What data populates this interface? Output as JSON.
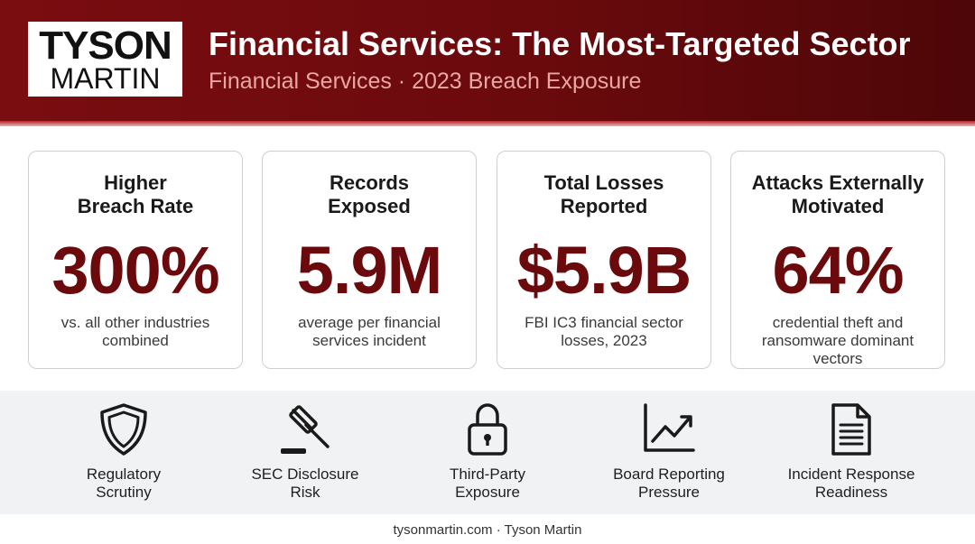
{
  "header": {
    "logo_line1": "TYSON",
    "logo_line2": "MARTIN",
    "title": "Financial Services: The Most-Targeted Sector",
    "subtitle": "Financial Services · 2023 Breach Exposure"
  },
  "stats": [
    {
      "title": "Higher\nBreach Rate",
      "value": "300%",
      "desc": "vs. all other industries combined"
    },
    {
      "title": "Records\nExposed",
      "value": "5.9M",
      "desc": "average per financial services incident"
    },
    {
      "title": "Total Losses\nReported",
      "value": "$5.9B",
      "desc": "FBI IC3 financial sector losses, 2023"
    },
    {
      "title": "Attacks Externally\nMotivated",
      "value": "64%",
      "desc": "credential theft and ransomware dominant vectors"
    }
  ],
  "risks": [
    {
      "icon": "shield-icon",
      "label": "Regulatory\nScrutiny"
    },
    {
      "icon": "gavel-icon",
      "label": "SEC Disclosure\nRisk"
    },
    {
      "icon": "lock-icon",
      "label": "Third-Party\nExposure"
    },
    {
      "icon": "chart-trend-icon",
      "label": "Board Reporting\nPressure"
    },
    {
      "icon": "document-icon",
      "label": "Incident Response\nReadiness"
    }
  ],
  "footer": {
    "text": "tysonmartin.com · Tyson Martin"
  },
  "colors": {
    "brand": "#6b0a0c",
    "header_bg": "#6a0a0d",
    "subtitle": "#e8a7a5"
  }
}
